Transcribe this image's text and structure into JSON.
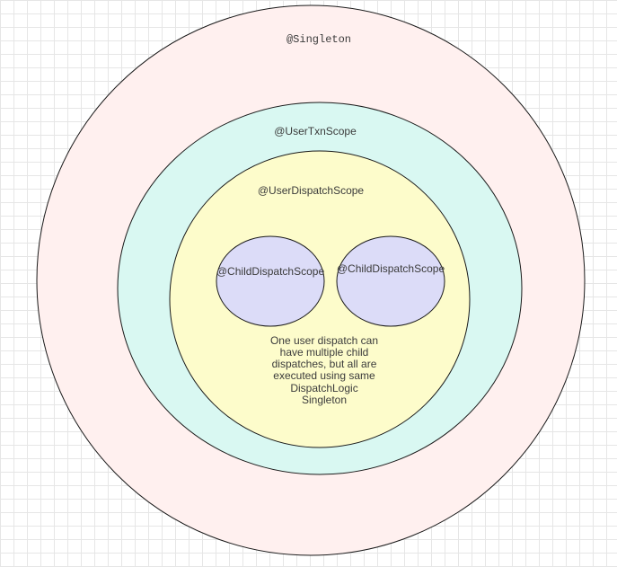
{
  "diagram": {
    "scopes": {
      "singleton": {
        "label": "@Singleton",
        "fill": "#fff0ef"
      },
      "user_txn": {
        "label": "@UserTxnScope",
        "fill": "#d9f8f2"
      },
      "user_dispatch": {
        "label": "@UserDispatchScope",
        "fill": "#fdfccb"
      },
      "child_dispatch_left": {
        "label": "@ChildDispatchScope",
        "fill": "#dcdcf8"
      },
      "child_dispatch_right": {
        "label": "@ChildDispatchScope",
        "fill": "#dcdcf8"
      }
    },
    "note": {
      "lines": [
        "One user dispatch can",
        "have multiple child",
        "dispatches, but all are",
        "executed using same",
        "DispatchLogic",
        "Singleton"
      ]
    },
    "stroke_color": "#1a1a1a"
  }
}
